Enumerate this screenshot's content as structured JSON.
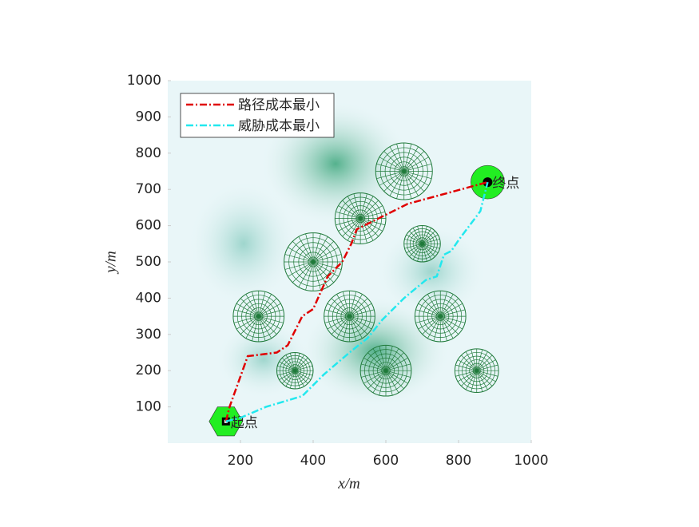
{
  "chart_data": {
    "type": "line",
    "x_label": "x/m",
    "y_label": "y/m",
    "xlim": [
      0,
      1000
    ],
    "ylim": [
      0,
      1000
    ],
    "xticks": [
      200,
      400,
      600,
      800,
      1000
    ],
    "yticks": [
      100,
      200,
      300,
      400,
      500,
      600,
      700,
      800,
      900,
      1000
    ],
    "series": [
      {
        "name": "路径成本最小",
        "color": "#e00000",
        "x": [
          160,
          170,
          220,
          300,
          330,
          345,
          370,
          400,
          440,
          460,
          480,
          505,
          520,
          540,
          660,
          880
        ],
        "values": [
          60,
          100,
          240,
          250,
          270,
          300,
          350,
          370,
          460,
          480,
          500,
          550,
          590,
          600,
          660,
          720
        ]
      },
      {
        "name": "威胁成本最小",
        "color": "#22e8ee",
        "x": [
          160,
          200,
          270,
          370,
          430,
          500,
          550,
          590,
          650,
          710,
          740,
          760,
          780,
          800,
          860,
          880
        ],
        "values": [
          60,
          70,
          100,
          130,
          190,
          250,
          290,
          340,
          400,
          450,
          460,
          520,
          530,
          560,
          640,
          720
        ]
      }
    ],
    "obstacles": [
      {
        "x": 650,
        "y": 750,
        "r": 78
      },
      {
        "x": 530,
        "y": 620,
        "r": 70
      },
      {
        "x": 700,
        "y": 550,
        "r": 50
      },
      {
        "x": 400,
        "y": 500,
        "r": 80
      },
      {
        "x": 250,
        "y": 350,
        "r": 70
      },
      {
        "x": 500,
        "y": 350,
        "r": 70
      },
      {
        "x": 750,
        "y": 350,
        "r": 70
      },
      {
        "x": 350,
        "y": 200,
        "r": 50
      },
      {
        "x": 600,
        "y": 200,
        "r": 70
      },
      {
        "x": 850,
        "y": 200,
        "r": 60
      }
    ],
    "start": {
      "label": "起点",
      "x": 160,
      "y": 60
    },
    "end": {
      "label": "终点",
      "x": 880,
      "y": 720
    }
  }
}
